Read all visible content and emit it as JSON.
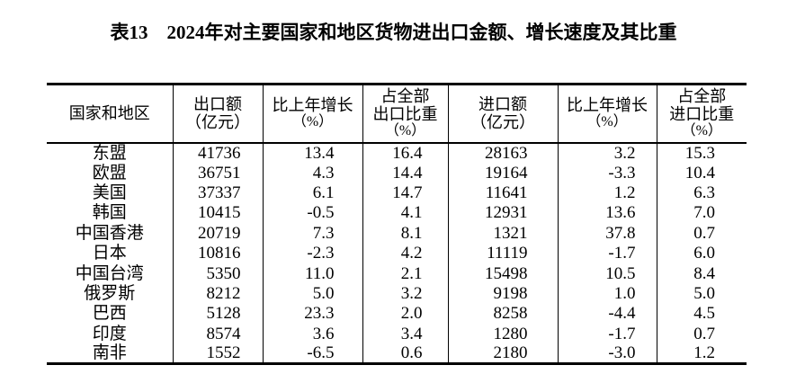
{
  "title": "表13　2024年对主要国家和地区货物进出口金额、增长速度及其比重",
  "table": {
    "headers": [
      {
        "lines": [
          "国家和地区"
        ]
      },
      {
        "lines": [
          "出口额",
          "（亿元）"
        ]
      },
      {
        "lines": [
          "比上年增长",
          "（%）"
        ]
      },
      {
        "lines": [
          "占全部",
          "出口比重",
          "（%）"
        ]
      },
      {
        "lines": [
          "进口额",
          "（亿元）"
        ]
      },
      {
        "lines": [
          "比上年增长",
          "（%）"
        ]
      },
      {
        "lines": [
          "占全部",
          "进口比重",
          "（%）"
        ]
      }
    ],
    "rows": [
      {
        "region": "东盟",
        "export_amount": "41736",
        "export_growth": "13.4",
        "export_share": "16.4",
        "import_amount": "28163",
        "import_growth": "3.2",
        "import_share": "15.3"
      },
      {
        "region": "欧盟",
        "export_amount": "36751",
        "export_growth": "4.3",
        "export_share": "14.4",
        "import_amount": "19164",
        "import_growth": "-3.3",
        "import_share": "10.4"
      },
      {
        "region": "美国",
        "export_amount": "37337",
        "export_growth": "6.1",
        "export_share": "14.7",
        "import_amount": "11641",
        "import_growth": "1.2",
        "import_share": "6.3"
      },
      {
        "region": "韩国",
        "export_amount": "10415",
        "export_growth": "-0.5",
        "export_share": "4.1",
        "import_amount": "12931",
        "import_growth": "13.6",
        "import_share": "7.0"
      },
      {
        "region": "中国香港",
        "export_amount": "20719",
        "export_growth": "7.3",
        "export_share": "8.1",
        "import_amount": "1321",
        "import_growth": "37.8",
        "import_share": "0.7"
      },
      {
        "region": "日本",
        "export_amount": "10816",
        "export_growth": "-2.3",
        "export_share": "4.2",
        "import_amount": "11119",
        "import_growth": "-1.7",
        "import_share": "6.0"
      },
      {
        "region": "中国台湾",
        "export_amount": "5350",
        "export_growth": "11.0",
        "export_share": "2.1",
        "import_amount": "15498",
        "import_growth": "10.5",
        "import_share": "8.4"
      },
      {
        "region": "俄罗斯",
        "export_amount": "8212",
        "export_growth": "5.0",
        "export_share": "3.2",
        "import_amount": "9198",
        "import_growth": "1.0",
        "import_share": "5.0"
      },
      {
        "region": "巴西",
        "export_amount": "5128",
        "export_growth": "23.3",
        "export_share": "2.0",
        "import_amount": "8258",
        "import_growth": "-4.4",
        "import_share": "4.5"
      },
      {
        "region": "印度",
        "export_amount": "8574",
        "export_growth": "3.6",
        "export_share": "3.4",
        "import_amount": "1280",
        "import_growth": "-1.7",
        "import_share": "0.7"
      },
      {
        "region": "南非",
        "export_amount": "1552",
        "export_growth": "-6.5",
        "export_share": "0.6",
        "import_amount": "2180",
        "import_growth": "-3.0",
        "import_share": "1.2"
      }
    ]
  }
}
